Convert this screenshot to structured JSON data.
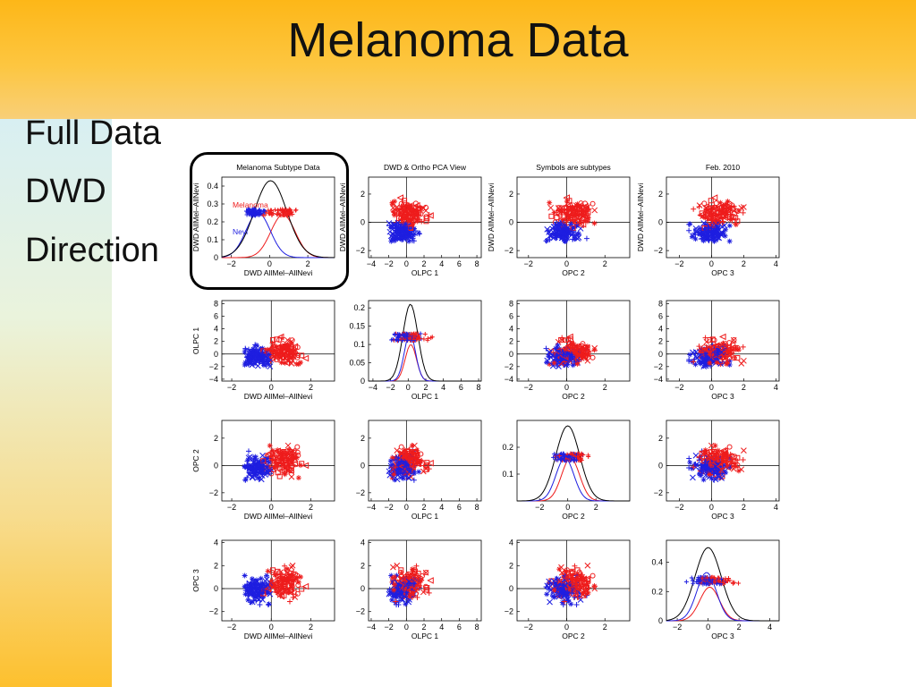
{
  "slide": {
    "title": "Melanoma Data",
    "bullets": [
      "Full Data",
      "DWD",
      "Direction"
    ]
  },
  "colors": {
    "melanoma": "#ee1c1c",
    "nevi": "#1e1ee0",
    "total": "#000000",
    "header_bg": "#fdb718",
    "sidebar_bg": "#d8eff2"
  },
  "chart_data": {
    "type": "scatter",
    "layout": "4x4 scatterplot matrix",
    "variables": [
      {
        "name": "DWD AllMel–AllNevi",
        "range": [
          -2.5,
          3.4
        ],
        "ticks": [
          -2,
          0,
          2
        ]
      },
      {
        "name": "OLPC 1",
        "range": [
          -4.5,
          8.3
        ],
        "ticks": [
          -4,
          -2,
          0,
          2,
          4,
          6,
          8
        ]
      },
      {
        "name": "OPC 2",
        "range": [
          -3.6,
          4.4
        ],
        "ticks": [
          -2,
          0,
          2
        ]
      },
      {
        "name": "OPC 3",
        "range": [
          -2.7,
          4.6
        ],
        "ticks": [
          -2,
          0,
          2,
          4
        ]
      }
    ],
    "scatter_ranges": [
      [
        -2.5,
        3.2
      ],
      [
        -4.3,
        8.5
      ],
      [
        -2.6,
        3.3
      ],
      [
        -2.8,
        4.2
      ]
    ],
    "scatter_ticks": [
      [
        -2,
        0,
        2
      ],
      [
        -4,
        -2,
        0,
        2,
        4,
        6,
        8
      ],
      [
        -2,
        0,
        2
      ],
      [
        -2,
        0,
        2,
        4
      ]
    ],
    "vertical_axis_labels": [
      "DWD AllMel–AllNevi",
      "OLPC 1",
      "OPC 2",
      "OPC 3"
    ],
    "horizontal_axis_labels": [
      "DWD AllMel–AllNevi",
      "OLPC 1",
      "OPC 2",
      "OPC 3"
    ],
    "panel_titles": [
      "Melanoma Subtype Data",
      "DWD & Ortho PCA View",
      "Symbols are subtypes",
      "Feb. 2010"
    ],
    "legend": [
      "Melanoma",
      "Nevi"
    ],
    "diagonal_panels": [
      {
        "ylim": [
          0,
          0.45
        ],
        "yticks": [
          0,
          0.1,
          0.2,
          0.3,
          0.4
        ],
        "total_peak": 0.43,
        "melanoma_peak": 0.24,
        "nevi_peak": 0.25,
        "jitter_level": 0.255,
        "melanoma_center": 0.7,
        "nevi_center": -0.6
      },
      {
        "ylim": [
          0,
          0.22
        ],
        "yticks": [
          0,
          0.05,
          0.1,
          0.15,
          0.2
        ],
        "total_peak": 0.21,
        "melanoma_peak": 0.1,
        "nevi_peak": 0.13,
        "jitter_level": 0.12,
        "melanoma_center": 0.3,
        "nevi_center": 0.2
      },
      {
        "ylim": [
          0,
          0.3
        ],
        "yticks": [
          0.1,
          0.2
        ],
        "total_peak": 0.28,
        "melanoma_peak": 0.16,
        "nevi_peak": 0.16,
        "jitter_level": 0.163,
        "melanoma_center": 0.2,
        "nevi_center": -0.2
      },
      {
        "ylim": [
          0,
          0.55
        ],
        "yticks": [
          0,
          0.2,
          0.4
        ],
        "total_peak": 0.5,
        "melanoma_peak": 0.23,
        "nevi_peak": 0.33,
        "jitter_level": 0.275,
        "melanoma_center": 0.1,
        "nevi_center": -0.1
      }
    ],
    "series": [
      {
        "name": "Melanoma",
        "color": "#ee1c1c",
        "markers": [
          "triangle-left",
          "square",
          "plus",
          "x",
          "star",
          "circle"
        ]
      },
      {
        "name": "Nevi",
        "color": "#1e1ee0",
        "markers": [
          "plus",
          "x",
          "star"
        ]
      }
    ]
  }
}
